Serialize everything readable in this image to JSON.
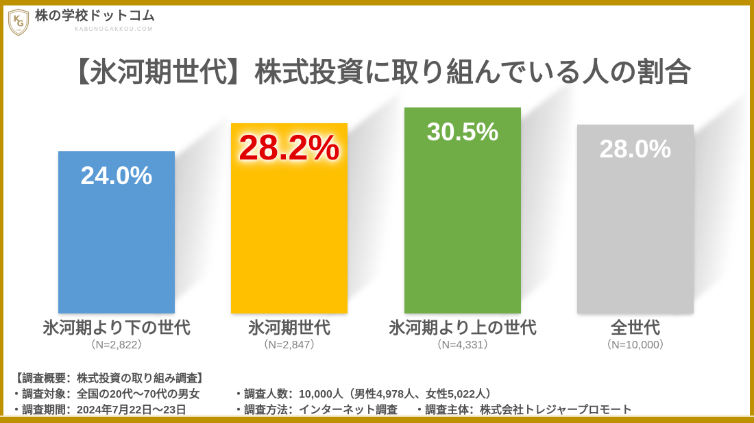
{
  "frame_color": "#bd9100",
  "logo": {
    "icon": "shield-kg-icon",
    "monogram_k": "K",
    "monogram_g": "G",
    "shield_caption": ".COM",
    "title": "株の学校ドットコム",
    "subtitle": "KABUNOGAKKOU.COM",
    "accent_color": "#b29a6a"
  },
  "header": {
    "title": "【氷河期世代】株式投資に取り組んでいる人の割合"
  },
  "chart_data": {
    "type": "bar",
    "title": "【氷河期世代】株式投資に取り組んでいる人の割合",
    "unit": "%",
    "ylim": [
      0,
      33
    ],
    "grid": false,
    "legend": "none",
    "categories": [
      "氷河期より下の世代",
      "氷河期世代",
      "氷河期より上の世代",
      "全世代"
    ],
    "sample_sizes": [
      "（N=2,822）",
      "（N=2,847）",
      "（N=4,331）",
      "（N=10,000）"
    ],
    "values": [
      24.0,
      28.2,
      30.5,
      28.0
    ],
    "value_labels": [
      "24.0%",
      "28.2%",
      "30.5%",
      "28.0%"
    ],
    "bar_colors": [
      "#5b9bd5",
      "#ffc000",
      "#70ad47",
      "#c9c9c9"
    ],
    "value_label_colors": [
      "#ffffff",
      "#e00000",
      "#ffffff",
      "#ffffff"
    ],
    "highlight_index": 1
  },
  "footer": {
    "heading": "【調査概要：株式投資の取り組み調査】",
    "rows": [
      [
        "・調査対象：全国の20代～70代の男女",
        "・調査人数：10,000人（男性4,978人、女性5,022人）"
      ],
      [
        "・調査期間：2024年7月22日～23日",
        "・調査方法：インターネット調査",
        "・調査主体：株式会社トレジャープロモート"
      ]
    ]
  }
}
